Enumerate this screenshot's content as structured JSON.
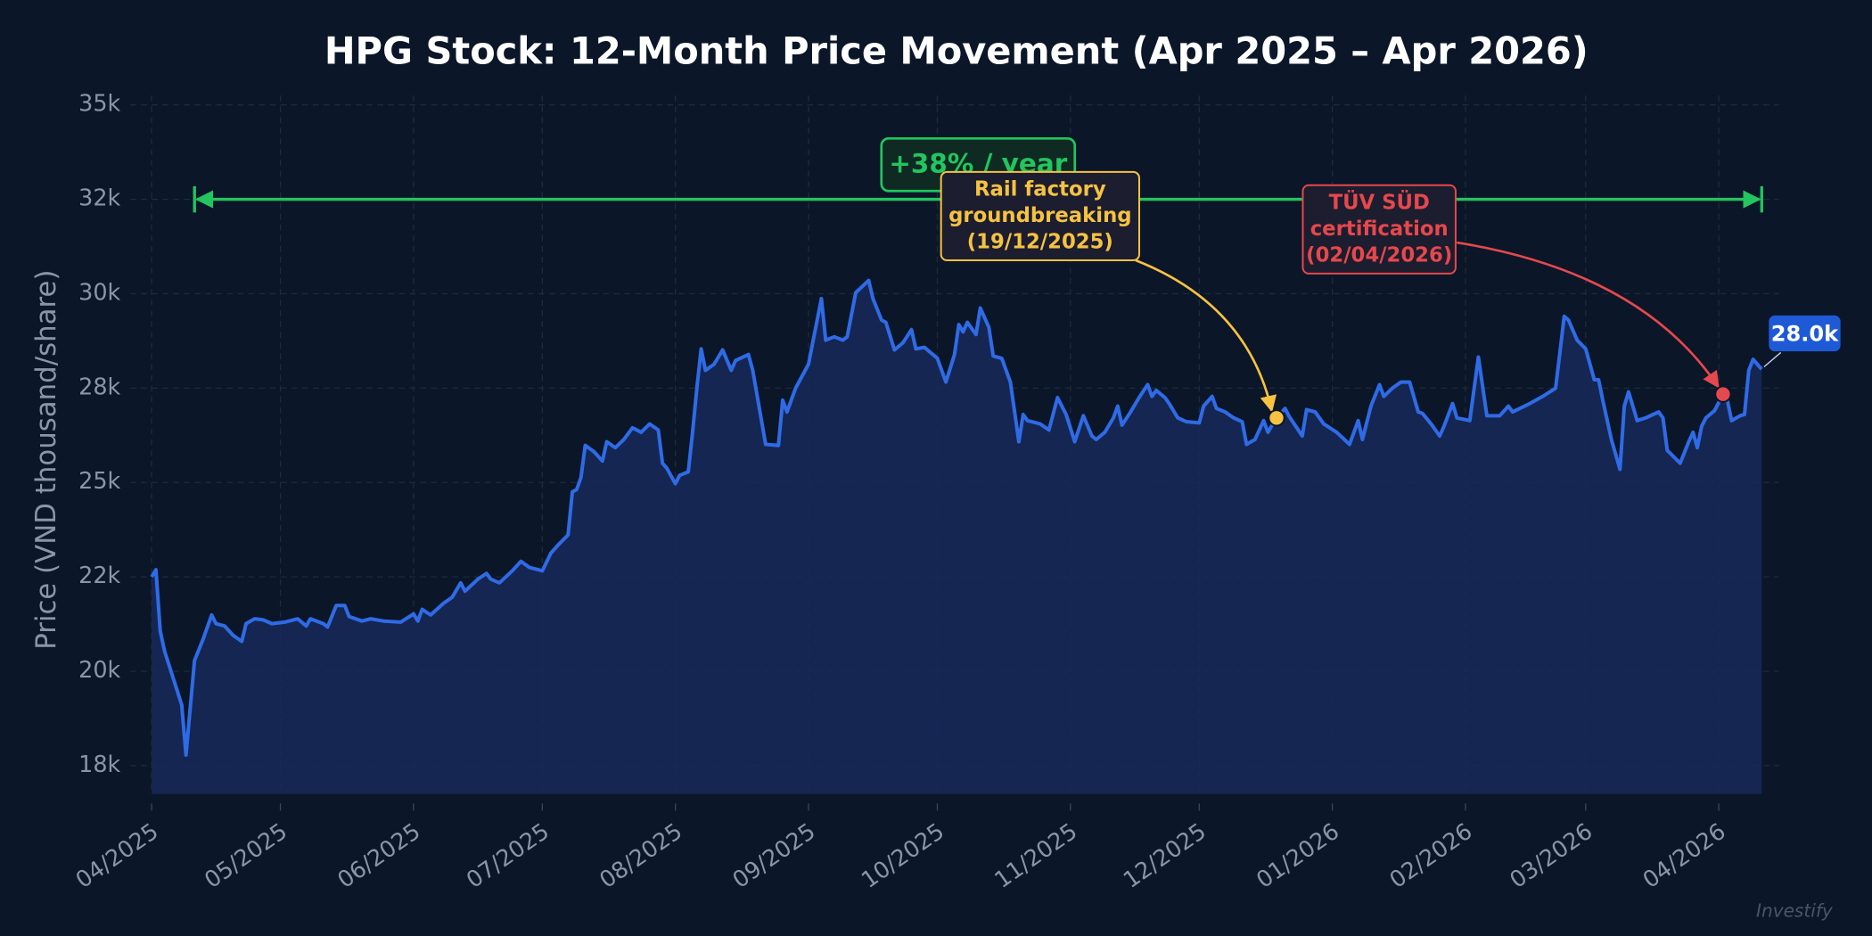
{
  "chart_data": {
    "type": "line",
    "title": "HPG Stock: 12-Month Price Movement (Apr 2025 – Apr 2026)",
    "y_label": "Price (VND thousand/share)",
    "watermark": "Investify",
    "color": "#2f6be6",
    "grid": true,
    "xlim": [
      "2025-03-27",
      "2026-04-15"
    ],
    "ylim": [
      16750,
      35250
    ],
    "xticks": [
      {
        "value": "2025-04-01",
        "label": "04/2025"
      },
      {
        "value": "2025-05-01",
        "label": "05/2025"
      },
      {
        "value": "2025-06-01",
        "label": "06/2025"
      },
      {
        "value": "2025-07-01",
        "label": "07/2025"
      },
      {
        "value": "2025-08-01",
        "label": "08/2025"
      },
      {
        "value": "2025-09-01",
        "label": "09/2025"
      },
      {
        "value": "2025-10-01",
        "label": "10/2025"
      },
      {
        "value": "2025-11-01",
        "label": "11/2025"
      },
      {
        "value": "2025-12-01",
        "label": "12/2025"
      },
      {
        "value": "2026-01-01",
        "label": "01/2026"
      },
      {
        "value": "2026-02-01",
        "label": "02/2026"
      },
      {
        "value": "2026-03-01",
        "label": "03/2026"
      },
      {
        "value": "2026-04-01",
        "label": "04/2026"
      }
    ],
    "yticks": [
      {
        "value": 17500,
        "label": "18k"
      },
      {
        "value": 20000,
        "label": "20k"
      },
      {
        "value": 22500,
        "label": "22k"
      },
      {
        "value": 25000,
        "label": "25k"
      },
      {
        "value": 27500,
        "label": "28k"
      },
      {
        "value": 30000,
        "label": "30k"
      },
      {
        "value": 32500,
        "label": "32k"
      },
      {
        "value": 35000,
        "label": "35k"
      }
    ],
    "x": [
      "2025-04-01",
      "2025-04-02",
      "2025-04-03",
      "2025-04-04",
      "2025-04-08",
      "2025-04-09",
      "2025-04-11",
      "2025-04-13",
      "2025-04-15",
      "2025-04-16",
      "2025-04-18",
      "2025-04-20",
      "2025-04-22",
      "2025-04-23",
      "2025-04-25",
      "2025-04-27",
      "2025-04-29",
      "2025-05-02",
      "2025-05-05",
      "2025-05-07",
      "2025-05-08",
      "2025-05-11",
      "2025-05-12",
      "2025-05-14",
      "2025-05-16",
      "2025-05-17",
      "2025-05-20",
      "2025-05-22",
      "2025-05-25",
      "2025-05-29",
      "2025-06-01",
      "2025-06-02",
      "2025-06-03",
      "2025-06-05",
      "2025-06-08",
      "2025-06-10",
      "2025-06-12",
      "2025-06-13",
      "2025-06-16",
      "2025-06-18",
      "2025-06-19",
      "2025-06-21",
      "2025-06-24",
      "2025-06-26",
      "2025-06-28",
      "2025-07-01",
      "2025-07-03",
      "2025-07-05",
      "2025-07-07",
      "2025-07-08",
      "2025-07-09",
      "2025-07-10",
      "2025-07-11",
      "2025-07-13",
      "2025-07-15",
      "2025-07-16",
      "2025-07-18",
      "2025-07-20",
      "2025-07-22",
      "2025-07-24",
      "2025-07-26",
      "2025-07-28",
      "2025-07-29",
      "2025-07-30",
      "2025-08-01",
      "2025-08-02",
      "2025-08-04",
      "2025-08-05",
      "2025-08-06",
      "2025-08-07",
      "2025-08-08",
      "2025-08-10",
      "2025-08-12",
      "2025-08-14",
      "2025-08-15",
      "2025-08-18",
      "2025-08-19",
      "2025-08-22",
      "2025-08-25",
      "2025-08-26",
      "2025-08-27",
      "2025-08-29",
      "2025-09-01",
      "2025-09-04",
      "2025-09-05",
      "2025-09-07",
      "2025-09-09",
      "2025-09-10",
      "2025-09-12",
      "2025-09-15",
      "2025-09-16",
      "2025-09-18",
      "2025-09-19",
      "2025-09-21",
      "2025-09-23",
      "2025-09-25",
      "2025-09-26",
      "2025-09-28",
      "2025-10-01",
      "2025-10-03",
      "2025-10-05",
      "2025-10-06",
      "2025-10-07",
      "2025-10-08",
      "2025-10-10",
      "2025-10-11",
      "2025-10-13",
      "2025-10-14",
      "2025-10-16",
      "2025-10-18",
      "2025-10-20",
      "2025-10-21",
      "2025-10-22",
      "2025-10-25",
      "2025-10-27",
      "2025-10-29",
      "2025-10-31",
      "2025-11-02",
      "2025-11-04",
      "2025-11-06",
      "2025-11-07",
      "2025-11-09",
      "2025-11-11",
      "2025-11-12",
      "2025-11-13",
      "2025-11-15",
      "2025-11-17",
      "2025-11-19",
      "2025-11-20",
      "2025-11-21",
      "2025-11-23",
      "2025-11-24",
      "2025-11-26",
      "2025-11-28",
      "2025-12-01",
      "2025-12-02",
      "2025-12-04",
      "2025-12-05",
      "2025-12-07",
      "2025-12-09",
      "2025-12-11",
      "2025-12-12",
      "2025-12-14",
      "2025-12-16",
      "2025-12-17",
      "2025-12-19",
      "2025-12-21",
      "2025-12-22",
      "2025-12-25",
      "2025-12-26",
      "2025-12-28",
      "2025-12-30",
      "2026-01-02",
      "2026-01-05",
      "2026-01-07",
      "2026-01-08",
      "2026-01-10",
      "2026-01-12",
      "2026-01-13",
      "2026-01-15",
      "2026-01-17",
      "2026-01-19",
      "2026-01-21",
      "2026-01-22",
      "2026-01-24",
      "2026-01-26",
      "2026-01-27",
      "2026-01-29",
      "2026-01-30",
      "2026-02-02",
      "2026-02-04",
      "2026-02-06",
      "2026-02-09",
      "2026-02-11",
      "2026-02-12",
      "2026-02-16",
      "2026-02-19",
      "2026-02-22",
      "2026-02-24",
      "2026-02-25",
      "2026-02-27",
      "2026-03-01",
      "2026-03-03",
      "2026-03-04",
      "2026-03-05",
      "2026-03-07",
      "2026-03-09",
      "2026-03-10",
      "2026-03-11",
      "2026-03-13",
      "2026-03-15",
      "2026-03-18",
      "2026-03-19",
      "2026-03-20",
      "2026-03-23",
      "2026-03-25",
      "2026-03-26",
      "2026-03-27",
      "2026-03-28",
      "2026-03-29",
      "2026-03-31",
      "2026-04-02",
      "2026-04-03",
      "2026-04-04",
      "2026-04-06",
      "2026-04-07",
      "2026-04-08",
      "2026-04-09",
      "2026-04-11"
    ],
    "values": [
      22500,
      22690,
      21070,
      20540,
      19110,
      17780,
      20280,
      20850,
      21490,
      21260,
      21200,
      20950,
      20790,
      21260,
      21390,
      21360,
      21260,
      21300,
      21390,
      21200,
      21390,
      21260,
      21170,
      21740,
      21740,
      21450,
      21330,
      21390,
      21330,
      21300,
      21520,
      21330,
      21640,
      21490,
      21800,
      21960,
      22340,
      22120,
      22440,
      22590,
      22440,
      22340,
      22660,
      22910,
      22750,
      22660,
      23130,
      23380,
      23610,
      24750,
      24810,
      25130,
      25980,
      25820,
      25570,
      26080,
      25920,
      26140,
      26450,
      26330,
      26550,
      26390,
      25510,
      25380,
      24970,
      25190,
      25280,
      26330,
      27500,
      28540,
      27970,
      28130,
      28510,
      27970,
      28230,
      28390,
      27970,
      26010,
      25980,
      27180,
      26870,
      27500,
      28130,
      29870,
      28770,
      28860,
      28770,
      28860,
      30030,
      30350,
      29870,
      29300,
      29240,
      28510,
      28700,
      29050,
      28540,
      28580,
      28290,
      27660,
      28390,
      29180,
      28990,
      29240,
      28920,
      29620,
      29110,
      28350,
      28290,
      27660,
      26080,
      26800,
      26640,
      26550,
      26390,
      27250,
      26800,
      26080,
      26770,
      26230,
      26140,
      26330,
      26710,
      27020,
      26520,
      26870,
      27250,
      27590,
      27280,
      27440,
      27250,
      27090,
      26710,
      26610,
      26580,
      27020,
      27280,
      26960,
      26870,
      26710,
      26610,
      26010,
      26140,
      26640,
      26330,
      26710,
      26960,
      26740,
      26230,
      26930,
      26870,
      26550,
      26330,
      26010,
      26640,
      26140,
      27020,
      27590,
      27280,
      27500,
      27660,
      27660,
      26870,
      26830,
      26550,
      26230,
      26490,
      27090,
      26710,
      26640,
      28320,
      26770,
      26770,
      27020,
      26870,
      27090,
      27280,
      27500,
      29400,
      29300,
      28770,
      28540,
      27720,
      27720,
      27180,
      26140,
      25350,
      27020,
      27400,
      26640,
      26710,
      26870,
      26710,
      25850,
      25510,
      26080,
      26330,
      25920,
      26490,
      26710,
      26900,
      27340,
      27180,
      26640,
      26770,
      26800,
      27970,
      28260,
      28000
    ],
    "last_price_label": "28.0k",
    "span": {
      "text": "+38% / year",
      "x": [
        "2025-04-11",
        "2026-04-11"
      ],
      "y": 32500,
      "color": "#22c55e"
    },
    "events": [
      {
        "label": [
          "Rail factory",
          "groundbreaking",
          "(19/12/2025)"
        ],
        "x": "2025-12-19",
        "y": 26710,
        "color": "#f5c242"
      },
      {
        "label": [
          "TÜV SÜD",
          "certification",
          "(02/04/2026)"
        ],
        "x": "2026-04-02",
        "y": 27340,
        "color": "#e5484d"
      }
    ]
  }
}
